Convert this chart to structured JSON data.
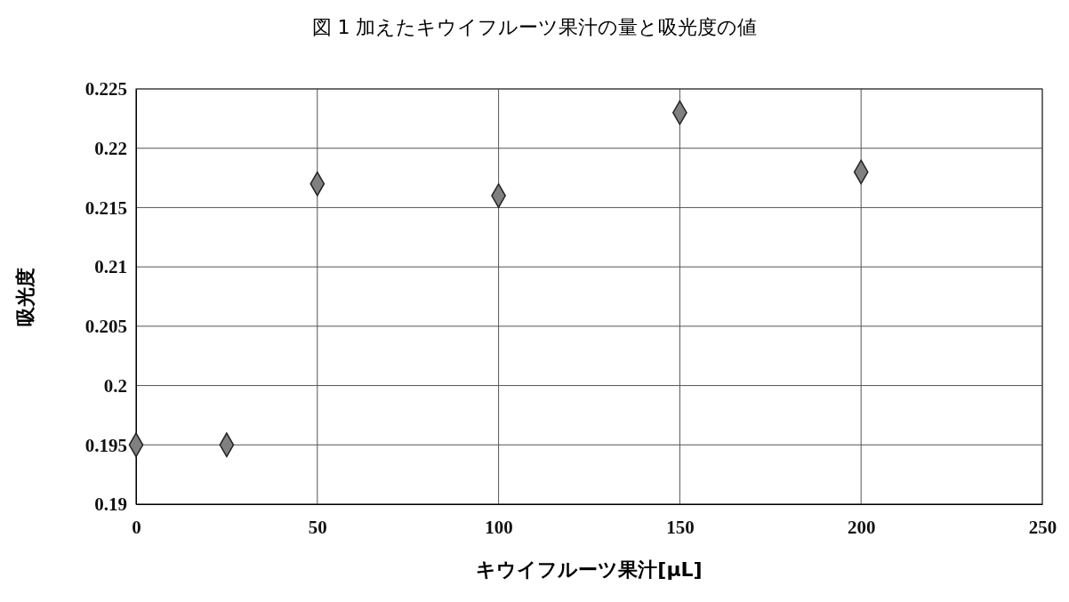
{
  "chart_data": {
    "type": "scatter",
    "title": "図 1 加えたキウイフルーツ果汁の量と吸光度の値",
    "xlabel": "キウイフルーツ果汁[μL]",
    "ylabel": "吸光度",
    "x": [
      0,
      25,
      50,
      100,
      150,
      200
    ],
    "values": [
      0.195,
      0.195,
      0.217,
      0.216,
      0.223,
      0.218
    ],
    "color": "#808080",
    "marker": "diamond",
    "xlim": [
      0,
      250
    ],
    "xticks": [
      0,
      50,
      100,
      150,
      200,
      250
    ],
    "ylim": [
      0.19,
      0.225
    ],
    "yticks": [
      0.19,
      0.195,
      0.2,
      0.205,
      0.21,
      0.215,
      0.22,
      0.225
    ],
    "grid": true
  }
}
